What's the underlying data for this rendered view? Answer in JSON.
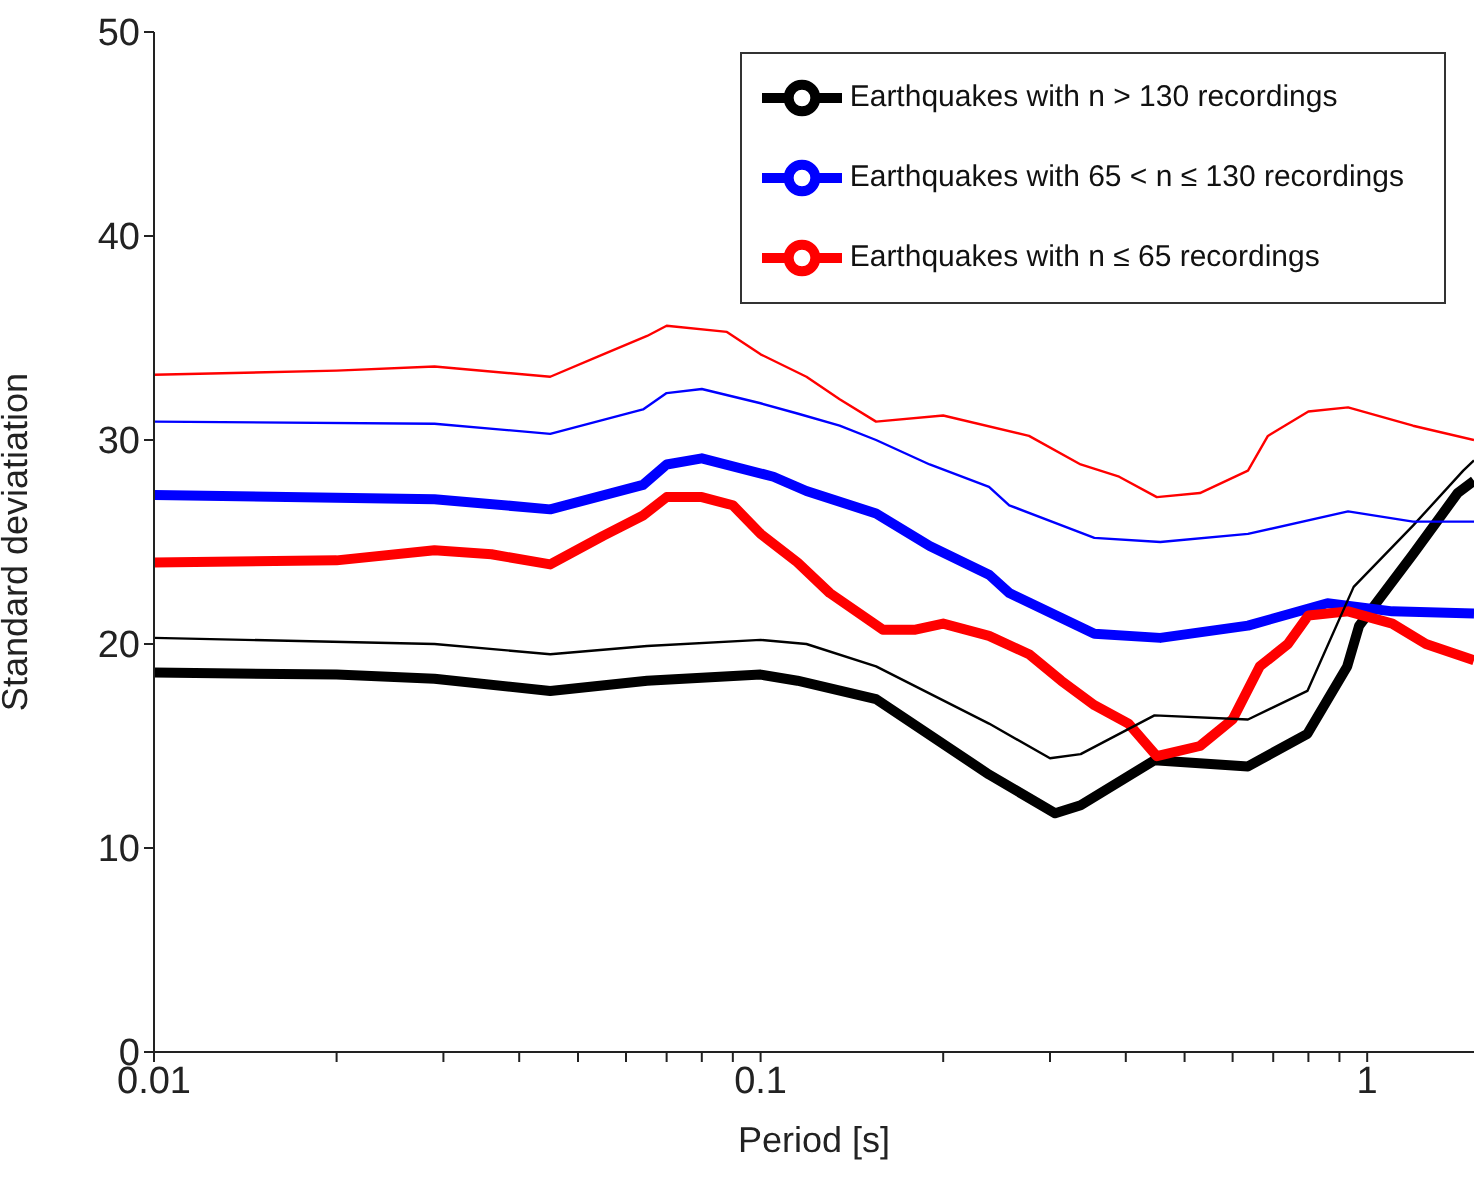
{
  "chart_data": {
    "type": "line",
    "xlabel": "Period [s]",
    "ylabel": "Standard deviatiation",
    "log": "x",
    "xlim": [
      0.01,
      1.5
    ],
    "ylim": [
      0,
      50
    ],
    "xticks": [
      0.01,
      {
        "value": 0.02,
        "label": null
      },
      {
        "value": 0.03,
        "label": null
      },
      {
        "value": 0.04,
        "label": null
      },
      {
        "value": 0.05,
        "label": null
      },
      {
        "value": 0.06,
        "label": null
      },
      {
        "value": 0.07,
        "label": null
      },
      {
        "value": 0.08,
        "label": null
      },
      {
        "value": 0.09,
        "label": null
      },
      0.1,
      {
        "value": 0.2,
        "label": null
      },
      {
        "value": 0.3,
        "label": null
      },
      {
        "value": 0.4,
        "label": null
      },
      {
        "value": 0.5,
        "label": null
      },
      {
        "value": 0.6,
        "label": null
      },
      {
        "value": 0.7,
        "label": null
      },
      {
        "value": 0.8,
        "label": null
      },
      {
        "value": 0.9,
        "label": null
      },
      1
    ],
    "yticks": [
      0,
      10,
      20,
      30,
      40,
      50
    ],
    "grid": false,
    "legend": "top right",
    "marker": "none",
    "line_style": "solid",
    "series": [
      {
        "name": "Earthquakes with n > 130 recordings",
        "color": "#000000",
        "x": [
          0.01,
          0.02,
          0.029,
          0.045,
          0.065,
          0.1,
          0.115,
          0.155,
          0.238,
          0.306,
          0.337,
          0.446,
          0.636,
          0.797,
          0.927,
          0.97,
          1.19,
          1.41,
          1.5
        ],
        "values": [
          18.6,
          18.5,
          18.3,
          17.7,
          18.2,
          18.5,
          18.2,
          17.3,
          13.6,
          11.7,
          12.1,
          14.3,
          14.0,
          15.6,
          18.9,
          20.9,
          24.4,
          27.4,
          28
        ]
      },
      {
        "name": "Earthquakes with 65 < n ≤ 130 recordings",
        "color": "#0000ff",
        "x": [
          0.01,
          0.029,
          0.045,
          0.064,
          0.07,
          0.08,
          0.105,
          0.119,
          0.155,
          0.19,
          0.238,
          0.257,
          0.355,
          0.456,
          0.636,
          0.86,
          1.1,
          1.5
        ],
        "values": [
          27.3,
          27.1,
          26.6,
          27.8,
          28.8,
          29.1,
          28.2,
          27.5,
          26.4,
          24.8,
          23.4,
          22.5,
          20.5,
          20.3,
          20.9,
          22.0,
          21.6,
          21.5
        ]
      },
      {
        "name": "Earthquakes with n ≤ 65 recordings",
        "color": "#ff0000",
        "x": [
          0.01,
          0.02,
          0.029,
          0.036,
          0.045,
          0.055,
          0.064,
          0.07,
          0.08,
          0.09,
          0.1,
          0.115,
          0.13,
          0.159,
          0.18,
          0.2,
          0.238,
          0.277,
          0.313,
          0.355,
          0.404,
          0.45,
          0.53,
          0.6,
          0.665,
          0.74,
          0.8,
          0.93,
          1.1,
          1.25,
          1.5
        ],
        "values": [
          24.0,
          24.1,
          24.6,
          24.4,
          23.9,
          25.3,
          26.3,
          27.2,
          27.2,
          26.8,
          25.4,
          24.0,
          22.5,
          20.7,
          20.7,
          21.0,
          20.4,
          19.5,
          18.2,
          17.0,
          16.1,
          14.5,
          15.0,
          16.3,
          18.9,
          20.0,
          21.4,
          21.6,
          21.0,
          20.0,
          19.2
        ]
      },
      {
        "color": "#000000",
        "x": [
          0.01,
          0.029,
          0.045,
          0.065,
          0.1,
          0.119,
          0.155,
          0.238,
          0.3,
          0.337,
          0.446,
          0.636,
          0.797,
          0.95,
          1.19,
          1.44,
          1.5
        ],
        "values": [
          20.3,
          20.0,
          19.5,
          19.9,
          20.2,
          20.0,
          18.9,
          16.1,
          14.4,
          14.6,
          16.5,
          16.3,
          17.7,
          22.8,
          25.8,
          28.5,
          29
        ]
      },
      {
        "color": "#0000ff",
        "x": [
          0.01,
          0.029,
          0.045,
          0.064,
          0.07,
          0.08,
          0.1,
          0.115,
          0.135,
          0.155,
          0.19,
          0.238,
          0.257,
          0.355,
          0.456,
          0.636,
          0.93,
          1.19,
          1.5
        ],
        "values": [
          30.9,
          30.8,
          30.3,
          31.5,
          32.3,
          32.5,
          31.8,
          31.3,
          30.7,
          30.0,
          28.8,
          27.7,
          26.8,
          25.2,
          25.0,
          25.4,
          26.5,
          26.0,
          26.0
        ]
      },
      {
        "color": "#ff0000",
        "x": [
          0.01,
          0.02,
          0.029,
          0.045,
          0.055,
          0.065,
          0.07,
          0.088,
          0.1,
          0.119,
          0.135,
          0.155,
          0.2,
          0.277,
          0.337,
          0.39,
          0.45,
          0.53,
          0.636,
          0.686,
          0.8,
          0.93,
          1.19,
          1.5
        ],
        "values": [
          33.2,
          33.4,
          33.6,
          33.1,
          34.2,
          35.1,
          35.6,
          35.3,
          34.2,
          33.1,
          32.0,
          30.9,
          31.2,
          30.2,
          28.8,
          28.2,
          27.2,
          27.4,
          28.5,
          30.2,
          31.4,
          31.6,
          30.7,
          30.0
        ]
      }
    ]
  }
}
